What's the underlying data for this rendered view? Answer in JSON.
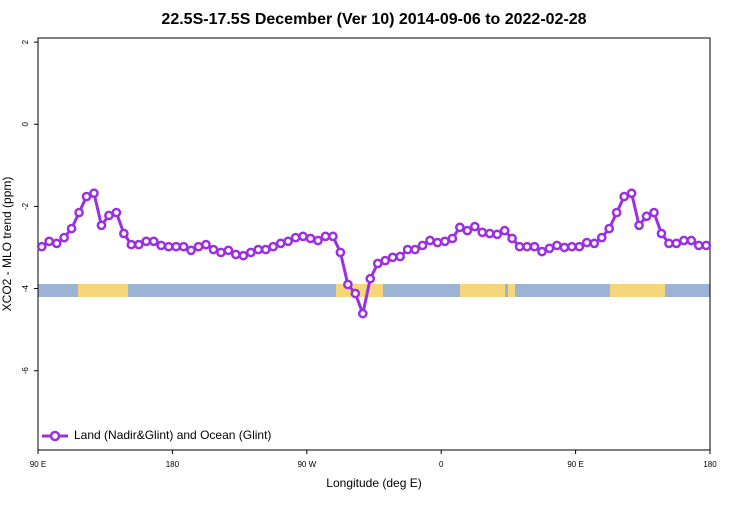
{
  "chart_data": {
    "type": "line",
    "title": "22.5S-17.5S December (Ver 10)   2014-09-06 to 2022-02-28",
    "x_label": "Longitude (deg E)",
    "y_label": "XCO2 - MLO trend (ppm)",
    "x": [
      92.5,
      97.5,
      102.5,
      107.5,
      112.5,
      117.5,
      122.5,
      127.5,
      132.5,
      137.5,
      142.5,
      147.5,
      152.5,
      157.5,
      162.5,
      167.5,
      172.5,
      177.5,
      182.5,
      187.5,
      192.5,
      197.5,
      202.5,
      207.5,
      212.5,
      217.5,
      222.5,
      227.5,
      232.5,
      237.5,
      242.5,
      247.5,
      252.5,
      257.5,
      262.5,
      267.5,
      272.5,
      277.5,
      282.5,
      287.5,
      292.5,
      297.5,
      302.5,
      307.5,
      312.5,
      317.5,
      322.5,
      327.5,
      332.5,
      337.5,
      342.5,
      347.5,
      352.5,
      357.5,
      362.5,
      367.5,
      372.5,
      377.5,
      382.5,
      387.5,
      392.5,
      397.5,
      402.5,
      407.5,
      412.5,
      417.5,
      422.5,
      427.5,
      432.5,
      437.5,
      442.5,
      447.5,
      452.5,
      457.5,
      462.5,
      467.5,
      472.5,
      477.5,
      482.5,
      487.5,
      492.5,
      497.5,
      502.5,
      507.5,
      512.5,
      517.5,
      522.5,
      527.5,
      532.5,
      537.5
    ],
    "series": [
      {
        "name": "Land (Nadir&Glint) and Ocean (Glint)",
        "color": "#9b30e0",
        "values": [
          -2.98,
          -2.85,
          -2.9,
          -2.76,
          -2.54,
          -2.15,
          -1.76,
          -1.68,
          -2.46,
          -2.22,
          -2.15,
          -2.66,
          -2.93,
          -2.93,
          -2.85,
          -2.85,
          -2.95,
          -2.98,
          -2.98,
          -2.98,
          -3.07,
          -2.98,
          -2.93,
          -3.05,
          -3.12,
          -3.07,
          -3.17,
          -3.2,
          -3.12,
          -3.05,
          -3.05,
          -2.98,
          -2.9,
          -2.85,
          -2.76,
          -2.73,
          -2.78,
          -2.83,
          -2.73,
          -2.73,
          -3.12,
          -3.9,
          -4.12,
          -4.61,
          -3.76,
          -3.39,
          -3.32,
          -3.24,
          -3.22,
          -3.05,
          -3.05,
          -2.95,
          -2.83,
          -2.88,
          -2.85,
          -2.78,
          -2.51,
          -2.59,
          -2.49,
          -2.63,
          -2.66,
          -2.68,
          -2.59,
          -2.78,
          -2.98,
          -2.98,
          -2.98,
          -3.1,
          -3.02,
          -2.95,
          -3.0,
          -2.98,
          -2.98,
          -2.88,
          -2.9,
          -2.76,
          -2.54,
          -2.15,
          -1.76,
          -1.68,
          -2.46,
          -2.24,
          -2.15,
          -2.66,
          -2.9,
          -2.9,
          -2.83,
          -2.83,
          -2.95,
          -2.95
        ]
      }
    ],
    "xlim": [
      90,
      540
    ],
    "xticks": [
      {
        "value": 90,
        "label": "90 E"
      },
      180,
      {
        "value": 270,
        "label": "90 W"
      },
      0,
      {
        "value": 450,
        "label": "90 E"
      },
      {
        "value": 540,
        "label": "180"
      }
    ],
    "ylim": [
      -7.93,
      2.1
    ],
    "yticks": [
      2,
      0,
      -2,
      -4,
      -6
    ],
    "legend": "bottom left"
  }
}
